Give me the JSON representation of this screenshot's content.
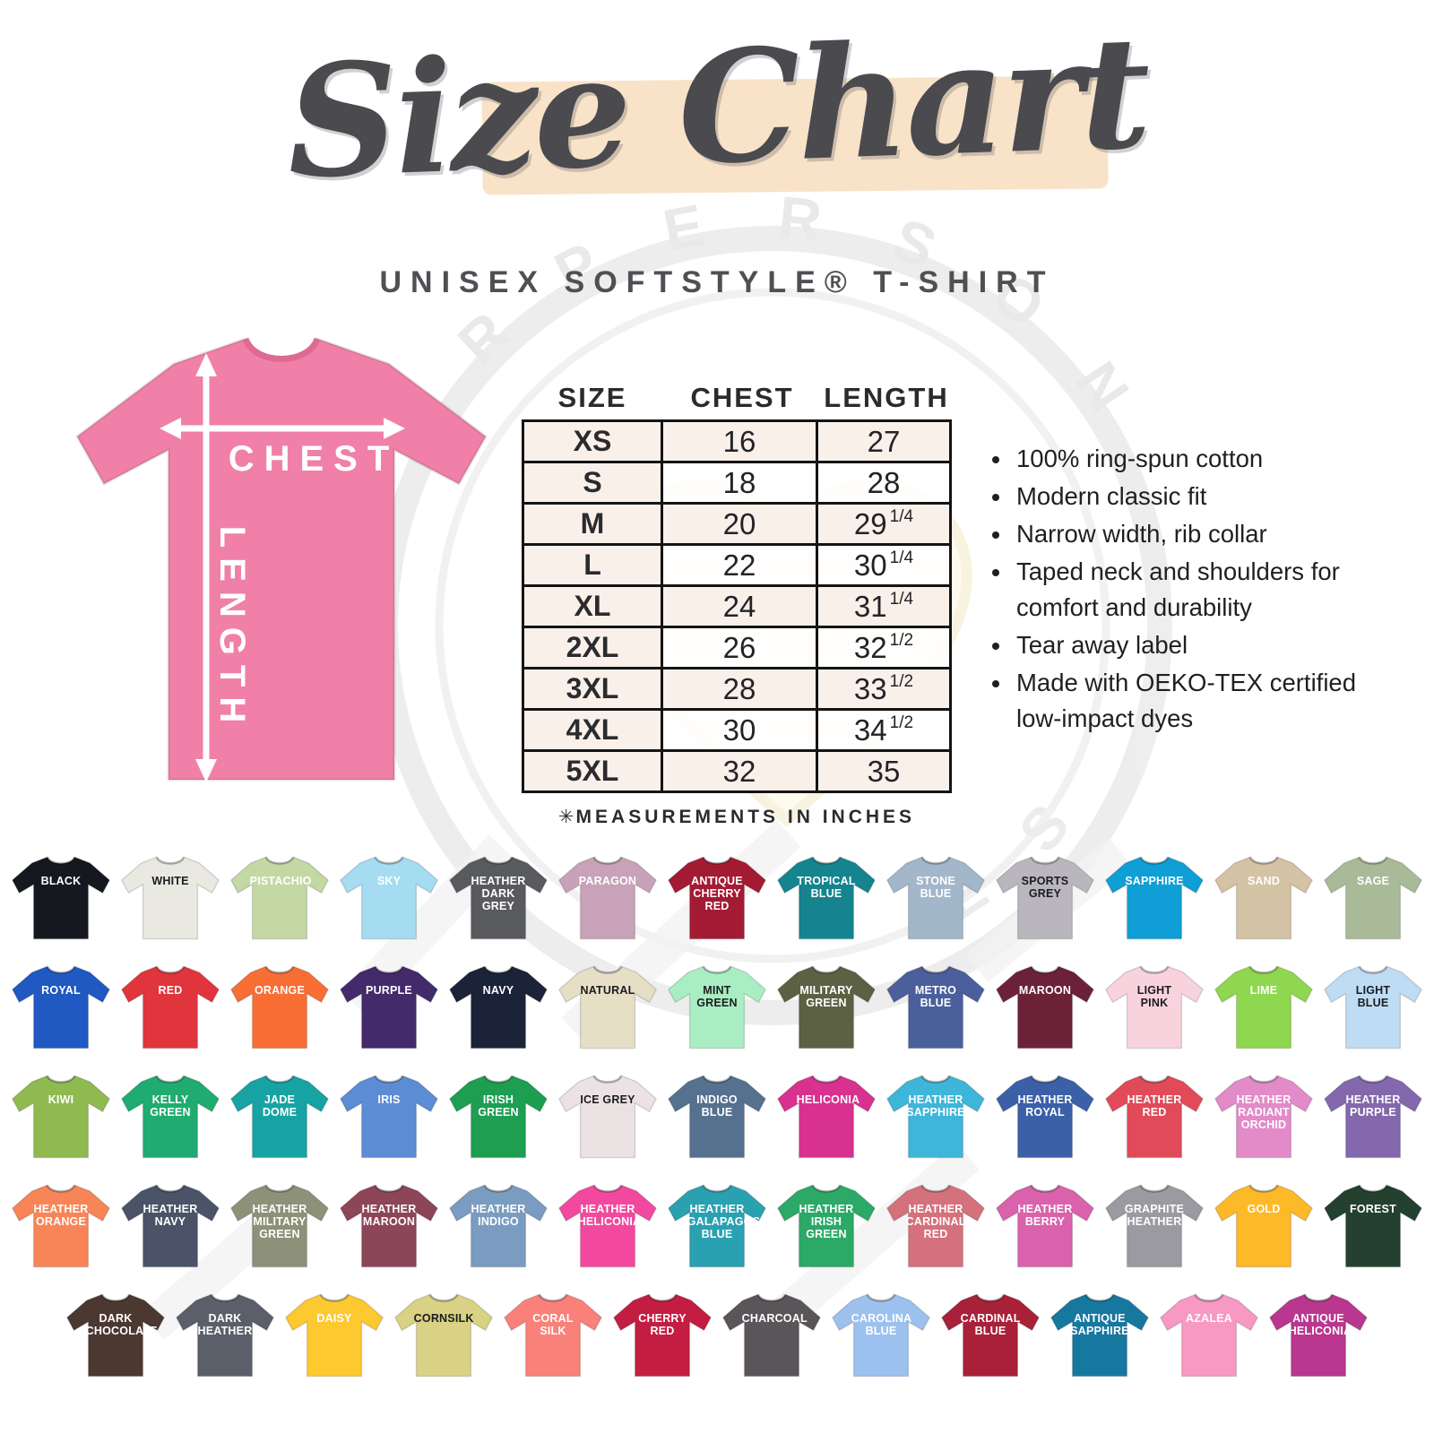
{
  "header": {
    "title": "Size Chart",
    "subtitle": "UNISEX SOFTSTYLE® T-SHIRT",
    "brush_color": "#f9e3c8"
  },
  "diagram": {
    "chest_label": "CHEST",
    "length_label": "LENGTH",
    "shirt_color": "#f080a8"
  },
  "size_table": {
    "columns": [
      "SIZE",
      "CHEST",
      "LENGTH"
    ],
    "rows": [
      {
        "size": "XS",
        "chest": "16",
        "length": "27",
        "frac": ""
      },
      {
        "size": "S",
        "chest": "18",
        "length": "28",
        "frac": ""
      },
      {
        "size": "M",
        "chest": "20",
        "length": "29",
        "frac": "1/4"
      },
      {
        "size": "L",
        "chest": "22",
        "length": "30",
        "frac": "1/4"
      },
      {
        "size": "XL",
        "chest": "24",
        "length": "31",
        "frac": "1/4"
      },
      {
        "size": "2XL",
        "chest": "26",
        "length": "32",
        "frac": "1/2"
      },
      {
        "size": "3XL",
        "chest": "28",
        "length": "33",
        "frac": "1/2"
      },
      {
        "size": "4XL",
        "chest": "30",
        "length": "34",
        "frac": "1/2"
      },
      {
        "size": "5XL",
        "chest": "32",
        "length": "35",
        "frac": ""
      }
    ],
    "note_symbol": "✳",
    "note_text": "MEASUREMENTS IN INCHES"
  },
  "features": [
    "100% ring-spun cotton",
    "Modern classic fit",
    "Narrow width, rib collar",
    "Taped neck and shoulders for comfort and durability",
    "Tear away label",
    "Made with OEKO-TEX certified low-impact dyes"
  ],
  "watermark": {
    "arc_text_top": "A R   P E R S O N",
    "arc_text_bottom": "E   S"
  },
  "chart_data": {
    "type": "table",
    "title": "Size Chart",
    "subtitle": "Unisex Softstyle T-Shirt",
    "columns": [
      "SIZE",
      "CHEST",
      "LENGTH"
    ],
    "rows": [
      [
        "XS",
        16,
        27
      ],
      [
        "S",
        18,
        28
      ],
      [
        "M",
        20,
        29.25
      ],
      [
        "L",
        22,
        30.25
      ],
      [
        "XL",
        24,
        31.25
      ],
      [
        "2XL",
        26,
        32.5
      ],
      [
        "3XL",
        28,
        33.5
      ],
      [
        "4XL",
        30,
        34.5
      ],
      [
        "5XL",
        32,
        35
      ]
    ],
    "units": "inches"
  },
  "swatch_rows": [
    [
      {
        "name": "BLACK",
        "color": "#16181f",
        "dark_text": false
      },
      {
        "name": "WHITE",
        "color": "#e9e9e1",
        "dark_text": true
      },
      {
        "name": "PISTACHIO",
        "color": "#c4d8a4",
        "dark_text": false
      },
      {
        "name": "SKY",
        "color": "#a6dcf2",
        "dark_text": false
      },
      {
        "name": "HEATHER DARK GREY",
        "color": "#595a5e",
        "dark_text": false
      },
      {
        "name": "PARAGON",
        "color": "#c7a2b8",
        "dark_text": false
      },
      {
        "name": "ANTIQUE CHERRY RED",
        "color": "#a31b33",
        "dark_text": false
      },
      {
        "name": "TROPICAL BLUE",
        "color": "#15848f",
        "dark_text": false
      },
      {
        "name": "STONE BLUE",
        "color": "#a2b7c9",
        "dark_text": false
      },
      {
        "name": "SPORTS GREY",
        "color": "#b9b6bd",
        "dark_text": true
      },
      {
        "name": "SAPPHIRE",
        "color": "#0f9fd6",
        "dark_text": false
      },
      {
        "name": "SAND",
        "color": "#d4c3a4",
        "dark_text": false
      },
      {
        "name": "SAGE",
        "color": "#a9ba99",
        "dark_text": false
      }
    ],
    [
      {
        "name": "ROYAL",
        "color": "#2059c1",
        "dark_text": false
      },
      {
        "name": "RED",
        "color": "#e0353c",
        "dark_text": false
      },
      {
        "name": "ORANGE",
        "color": "#f86e35",
        "dark_text": false
      },
      {
        "name": "PURPLE",
        "color": "#422a6b",
        "dark_text": false
      },
      {
        "name": "NAVY",
        "color": "#1b2338",
        "dark_text": false
      },
      {
        "name": "NATURAL",
        "color": "#e7dec6",
        "dark_text": true
      },
      {
        "name": "MINT GREEN",
        "color": "#a9eec3",
        "dark_text": true
      },
      {
        "name": "MILITARY GREEN",
        "color": "#5d6143",
        "dark_text": false
      },
      {
        "name": "METRO BLUE",
        "color": "#4c5f9d",
        "dark_text": false
      },
      {
        "name": "MAROON",
        "color": "#6b2239",
        "dark_text": false
      },
      {
        "name": "LIGHT PINK",
        "color": "#f8d3de",
        "dark_text": true
      },
      {
        "name": "LIME",
        "color": "#8ed74f",
        "dark_text": false
      },
      {
        "name": "LIGHT BLUE",
        "color": "#bedcf4",
        "dark_text": true
      }
    ],
    [
      {
        "name": "KIWI",
        "color": "#8fba50",
        "dark_text": false
      },
      {
        "name": "KELLY GREEN",
        "color": "#20ab71",
        "dark_text": false
      },
      {
        "name": "JADE DOME",
        "color": "#17a3a3",
        "dark_text": false
      },
      {
        "name": "IRIS",
        "color": "#5c8cd3",
        "dark_text": false
      },
      {
        "name": "IRISH GREEN",
        "color": "#1d9e51",
        "dark_text": false
      },
      {
        "name": "ICE GREY",
        "color": "#ebe3e3",
        "dark_text": true
      },
      {
        "name": "INDIGO BLUE",
        "color": "#55718f",
        "dark_text": false
      },
      {
        "name": "HELICONIA",
        "color": "#d93190",
        "dark_text": false
      },
      {
        "name": "HEATHER SAPPHIRE",
        "color": "#3eb6da",
        "dark_text": false
      },
      {
        "name": "HEATHER ROYAL",
        "color": "#3b60a8",
        "dark_text": false
      },
      {
        "name": "HEATHER RED",
        "color": "#e14b59",
        "dark_text": false
      },
      {
        "name": "HEATHER RADIANT ORCHID",
        "color": "#e38ac9",
        "dark_text": false
      },
      {
        "name": "HEATHER PURPLE",
        "color": "#8368ad",
        "dark_text": false
      }
    ],
    [
      {
        "name": "HEATHER ORANGE",
        "color": "#f88557",
        "dark_text": false
      },
      {
        "name": "HEATHER NAVY",
        "color": "#4a5367",
        "dark_text": false
      },
      {
        "name": "HEATHER MILITARY GREEN",
        "color": "#8d9179",
        "dark_text": false
      },
      {
        "name": "HEATHER MAROON",
        "color": "#8d4558",
        "dark_text": false
      },
      {
        "name": "HEATHER INDIGO",
        "color": "#7b9cc1",
        "dark_text": false
      },
      {
        "name": "HEATHER HELICONIA",
        "color": "#f2499f",
        "dark_text": false
      },
      {
        "name": "HEATHER GALAPAGOS BLUE",
        "color": "#2aa1b1",
        "dark_text": false
      },
      {
        "name": "HEATHER IRISH GREEN",
        "color": "#2ca967",
        "dark_text": false
      },
      {
        "name": "HEATHER CARDINAL RED",
        "color": "#d5717c",
        "dark_text": false
      },
      {
        "name": "HEATHER BERRY",
        "color": "#da62ac",
        "dark_text": false
      },
      {
        "name": "GRAPHITE HEATHER",
        "color": "#9b9aa0",
        "dark_text": false
      },
      {
        "name": "GOLD",
        "color": "#fdb927",
        "dark_text": false
      },
      {
        "name": "FOREST",
        "color": "#24402e",
        "dark_text": false
      }
    ],
    [
      {
        "name": "DARK CHOCOLATE",
        "color": "#4b3831",
        "dark_text": false
      },
      {
        "name": "DARK HEATHER",
        "color": "#5b5f69",
        "dark_text": false
      },
      {
        "name": "DAISY",
        "color": "#fdc930",
        "dark_text": false
      },
      {
        "name": "CORNSILK",
        "color": "#d9d184",
        "dark_text": true
      },
      {
        "name": "CORAL SILK",
        "color": "#fa8179",
        "dark_text": false
      },
      {
        "name": "CHERRY RED",
        "color": "#c41d42",
        "dark_text": false
      },
      {
        "name": "CHARCOAL",
        "color": "#595559",
        "dark_text": false
      },
      {
        "name": "CAROLINA BLUE",
        "color": "#9dc1ef",
        "dark_text": false
      },
      {
        "name": "CARDINAL BLUE",
        "color": "#a92039",
        "dark_text": false
      },
      {
        "name": "ANTIQUE SAPPHIRE",
        "color": "#17789f",
        "dark_text": false
      },
      {
        "name": "AZALEA",
        "color": "#f799c2",
        "dark_text": false
      },
      {
        "name": "ANTIQUE HELICONIA",
        "color": "#b9378f",
        "dark_text": false
      }
    ]
  ]
}
